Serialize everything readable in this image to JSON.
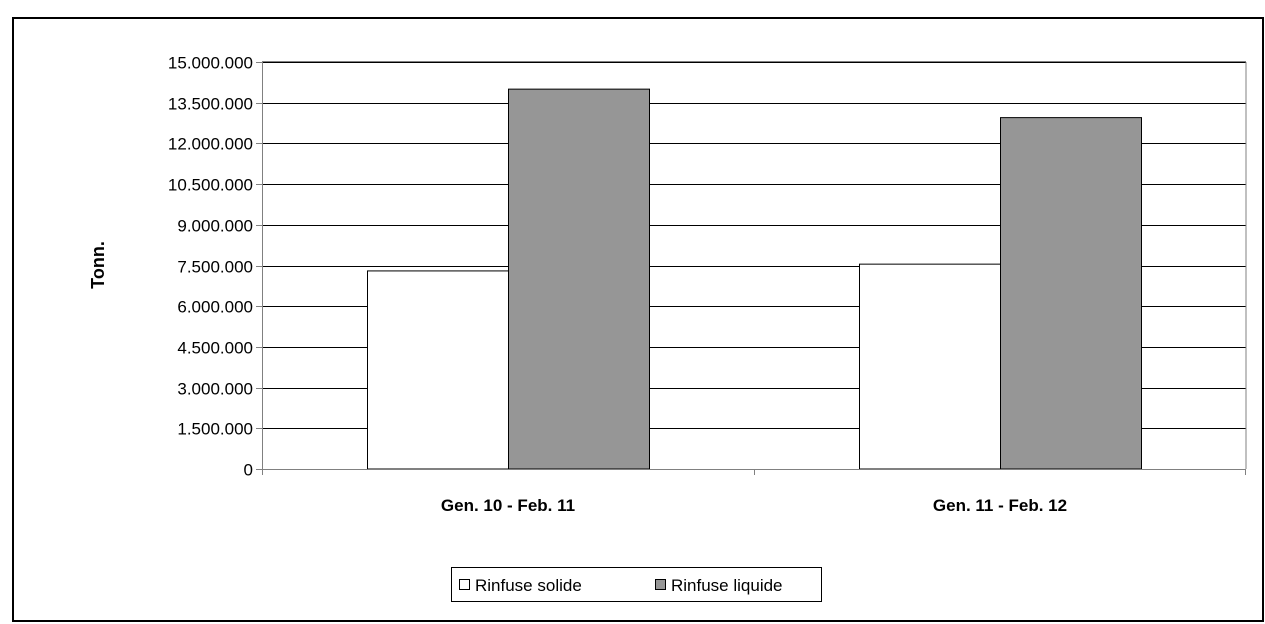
{
  "chart_data": {
    "type": "bar",
    "title": "",
    "xlabel": "",
    "ylabel": "Tonn.",
    "ylim": [
      0,
      15000000
    ],
    "yticks": [
      0,
      1500000,
      3000000,
      4500000,
      6000000,
      7500000,
      9000000,
      10500000,
      12000000,
      13500000,
      15000000
    ],
    "ytick_labels": [
      "0",
      "1.500.000",
      "3.000.000",
      "4.500.000",
      "6.000.000",
      "7.500.000",
      "9.000.000",
      "10.500.000",
      "12.000.000",
      "13.500.000",
      "15.000.000"
    ],
    "categories": [
      "Gen. 10 - Feb. 11",
      "Gen. 11 - Feb. 12"
    ],
    "series": [
      {
        "name": "Rinfuse solide",
        "values": [
          7300000,
          7550000
        ],
        "color": "#ffffff"
      },
      {
        "name": "Rinfuse liquide",
        "values": [
          14000000,
          12950000
        ],
        "color": "#969696"
      }
    ],
    "grid": true,
    "legend_position": "bottom-center"
  }
}
